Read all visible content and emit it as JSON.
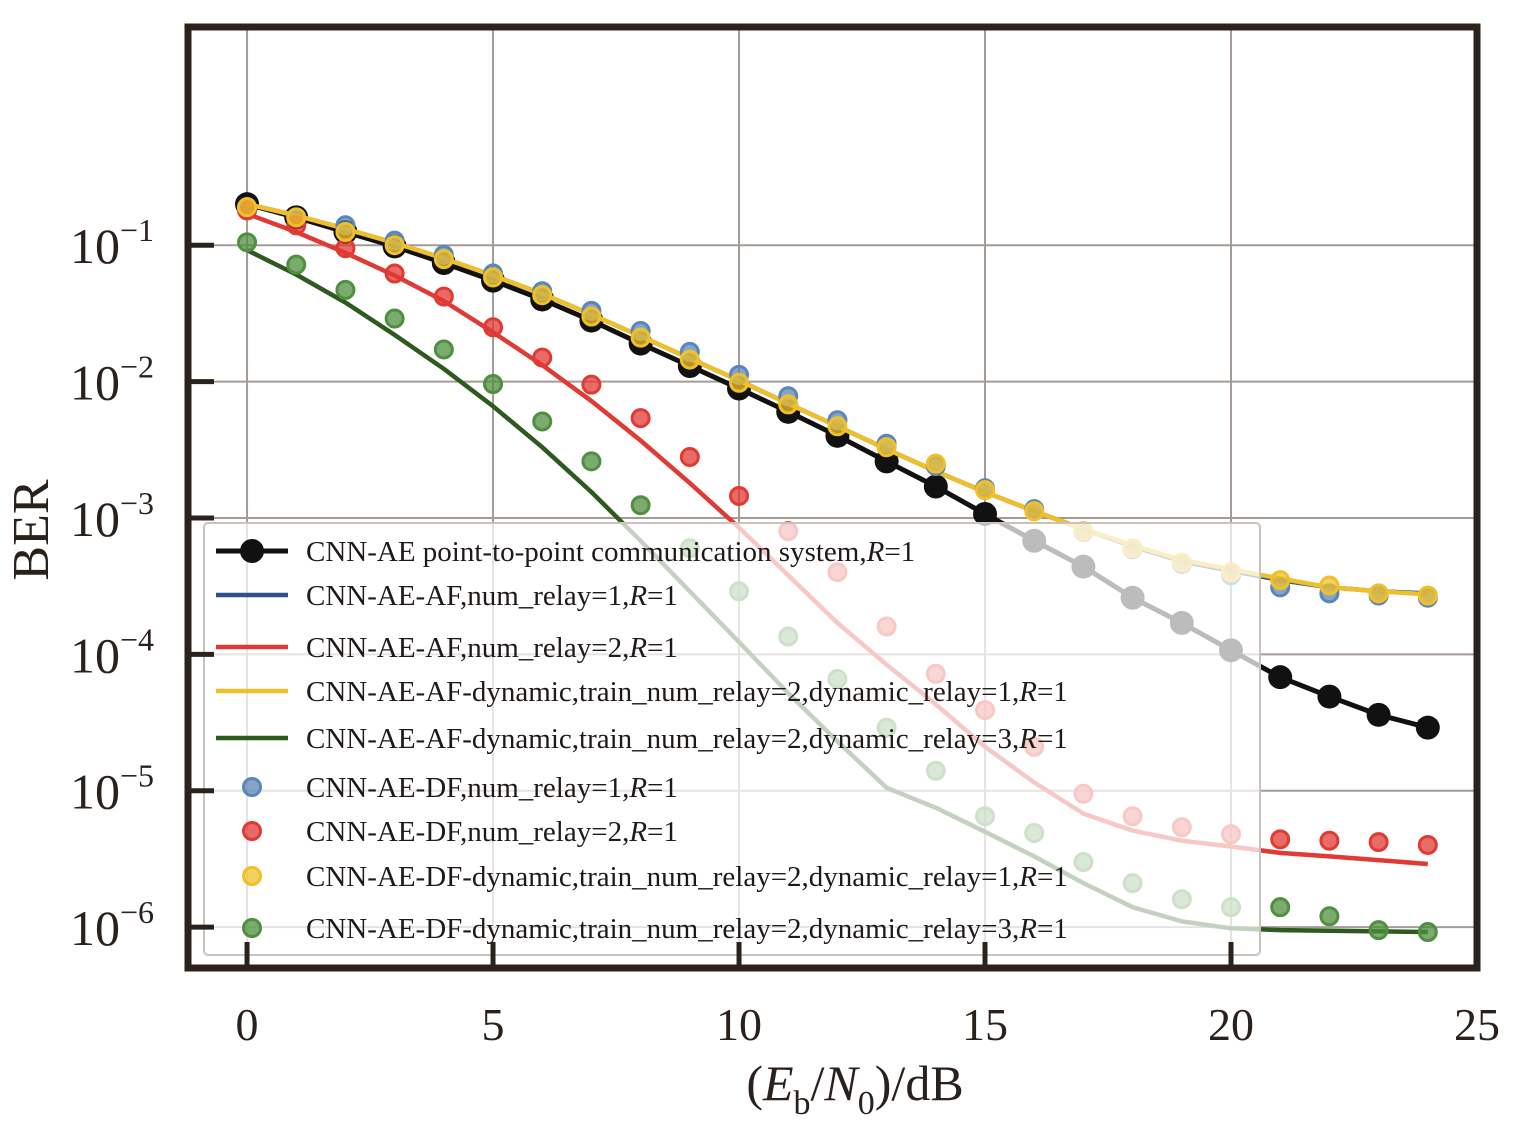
{
  "chart_data": {
    "type": "line",
    "xlabel": {
      "pre": "(",
      "e": "E",
      "b": "b",
      "slash": "/",
      "n": "N",
      "zero": "0",
      "post": ")/dB"
    },
    "ylabel": "BER",
    "xlim": [
      -1.2,
      25
    ],
    "ylim_log10": [
      -6.3,
      0.6
    ],
    "y_scale": "log",
    "grid": true,
    "legend_position": "lower-left",
    "x_ticks": [
      0,
      5,
      10,
      15,
      20,
      25
    ],
    "x_tick_labels": [
      "0",
      "5",
      "10",
      "15",
      "20",
      "25"
    ],
    "y_ticks": [
      {
        "base": "10",
        "exp": "−1",
        "value": 0.1
      },
      {
        "base": "10",
        "exp": "−2",
        "value": 0.01
      },
      {
        "base": "10",
        "exp": "−3",
        "value": 0.001
      },
      {
        "base": "10",
        "exp": "−4",
        "value": 0.0001
      },
      {
        "base": "10",
        "exp": "−5",
        "value": 1e-05
      },
      {
        "base": "10",
        "exp": "−6",
        "value": 1e-06
      }
    ],
    "series": [
      {
        "name": "CNN-AE point-to-point communication system,",
        "suffix": "R",
        "suffix_rest": "=1",
        "kind": "line-marker",
        "color": "#111111",
        "x": [
          0,
          1,
          2,
          3,
          4,
          5,
          6,
          7,
          8,
          9,
          10,
          11,
          12,
          13,
          14,
          15,
          16,
          17,
          18,
          19,
          20,
          21,
          22,
          23,
          24
        ],
        "y": [
          0.2,
          0.16,
          0.125,
          0.098,
          0.074,
          0.055,
          0.04,
          0.028,
          0.019,
          0.013,
          0.0089,
          0.006,
          0.004,
          0.0026,
          0.0017,
          0.00107,
          0.00068,
          0.00044,
          0.00026,
          0.00017,
          0.000107,
          6.8e-05,
          4.9e-05,
          3.6e-05,
          2.9e-05
        ]
      },
      {
        "name": "CNN-AE-AF,num_relay=1,",
        "suffix": "R",
        "suffix_rest": "=1",
        "kind": "line",
        "color": "#2f4f8f",
        "x": [
          0,
          1,
          2,
          3,
          4,
          5,
          6,
          7,
          8,
          9,
          10,
          11,
          12,
          13,
          14,
          15,
          16,
          17,
          18,
          19,
          20,
          21,
          22,
          23,
          24
        ],
        "y": [
          0.2,
          0.165,
          0.132,
          0.104,
          0.08,
          0.06,
          0.044,
          0.031,
          0.0215,
          0.0148,
          0.0102,
          0.0069,
          0.0047,
          0.0032,
          0.0022,
          0.00155,
          0.00112,
          0.00083,
          0.00062,
          0.00048,
          0.00041,
          0.00035,
          0.00031,
          0.00029,
          0.00028
        ]
      },
      {
        "name": "CNN-AE-AF,num_relay=2,",
        "suffix": "R",
        "suffix_rest": "=1",
        "kind": "line",
        "color": "#e03a34",
        "x": [
          0,
          1,
          2,
          3,
          4,
          5,
          6,
          7,
          8,
          9,
          10,
          11,
          12,
          13,
          14,
          15,
          16,
          17,
          18,
          19,
          20,
          21,
          22,
          23,
          24
        ],
        "y": [
          0.17,
          0.125,
          0.088,
          0.06,
          0.039,
          0.023,
          0.0132,
          0.0072,
          0.0037,
          0.0018,
          0.00085,
          0.00038,
          0.00017,
          8.4e-05,
          4.3e-05,
          2.1e-05,
          1.15e-05,
          6.8e-06,
          5.1e-06,
          4.3e-06,
          3.9e-06,
          3.5e-06,
          3.3e-06,
          3.1e-06,
          2.9e-06
        ]
      },
      {
        "name": "CNN-AE-AF-dynamic,train_num_relay=2,dynamic_relay=1,",
        "suffix": "R",
        "suffix_rest": "=1",
        "kind": "line",
        "color": "#f0c02a",
        "x": [
          0,
          1,
          2,
          3,
          4,
          5,
          6,
          7,
          8,
          9,
          10,
          11,
          12,
          13,
          14,
          15,
          16,
          17,
          18,
          19,
          20,
          21,
          22,
          23,
          24
        ],
        "y": [
          0.2,
          0.165,
          0.132,
          0.104,
          0.08,
          0.06,
          0.044,
          0.031,
          0.0215,
          0.0148,
          0.0102,
          0.0069,
          0.0047,
          0.0032,
          0.0022,
          0.00155,
          0.00112,
          0.00083,
          0.00063,
          0.00049,
          0.00042,
          0.00036,
          0.00031,
          0.00029,
          0.000275
        ]
      },
      {
        "name": "CNN-AE-AF-dynamic,train_num_relay=2,dynamic_relay=3,",
        "suffix": "R",
        "suffix_rest": "=1",
        "kind": "line",
        "color": "#2d5a1e",
        "x": [
          0,
          1,
          2,
          3,
          4,
          5,
          6,
          7,
          8,
          9,
          10,
          11,
          12,
          13,
          14,
          15,
          16,
          17,
          18,
          19,
          20,
          21,
          22,
          23,
          24
        ],
        "y": [
          0.092,
          0.061,
          0.038,
          0.022,
          0.0124,
          0.0066,
          0.0033,
          0.00155,
          0.00068,
          0.00029,
          0.000123,
          5.2e-05,
          2.3e-05,
          1.05e-05,
          7.5e-06,
          5e-06,
          3.3e-06,
          2.1e-06,
          1.4e-06,
          1.1e-06,
          9.8e-07,
          9.5e-07,
          9.4e-07,
          9.3e-07,
          9.2e-07
        ]
      },
      {
        "name": "CNN-AE-DF,num_relay=1,",
        "suffix": "R",
        "suffix_rest": "=1",
        "kind": "marker",
        "color": "#5b86b8",
        "x": [
          0,
          1,
          2,
          3,
          4,
          5,
          6,
          7,
          8,
          9,
          10,
          11,
          12,
          13,
          14,
          15,
          16,
          17,
          18,
          19,
          20,
          21,
          22,
          23,
          24
        ],
        "y": [
          0.19,
          0.16,
          0.14,
          0.108,
          0.085,
          0.062,
          0.046,
          0.033,
          0.0235,
          0.0165,
          0.0112,
          0.0078,
          0.0052,
          0.0035,
          0.0024,
          0.00165,
          0.00116,
          0.00079,
          0.00059,
          0.00046,
          0.00038,
          0.00031,
          0.00028,
          0.00027,
          0.00026
        ]
      },
      {
        "name": "CNN-AE-DF,num_relay=2,",
        "suffix": "R",
        "suffix_rest": "=1",
        "kind": "marker",
        "color": "#e03a34",
        "x": [
          0,
          1,
          2,
          3,
          4,
          5,
          6,
          7,
          8,
          9,
          10,
          11,
          12,
          13,
          14,
          15,
          16,
          17,
          18,
          19,
          20,
          21,
          22,
          23,
          24
        ],
        "y": [
          0.18,
          0.14,
          0.095,
          0.062,
          0.042,
          0.025,
          0.015,
          0.0095,
          0.0054,
          0.0028,
          0.00145,
          0.0008,
          0.0004,
          0.00016,
          7.2e-05,
          3.9e-05,
          2.1e-05,
          9.5e-06,
          6.5e-06,
          5.4e-06,
          4.8e-06,
          4.4e-06,
          4.3e-06,
          4.2e-06,
          4e-06
        ]
      },
      {
        "name": "CNN-AE-DF-dynamic,train_num_relay=2,dynamic_relay=1,",
        "suffix": "R",
        "suffix_rest": "=1",
        "kind": "marker",
        "color": "#f0c02a",
        "x": [
          0,
          1,
          2,
          3,
          4,
          5,
          6,
          7,
          8,
          9,
          10,
          11,
          12,
          13,
          14,
          15,
          16,
          17,
          18,
          19,
          20,
          21,
          22,
          23,
          24
        ],
        "y": [
          0.19,
          0.16,
          0.125,
          0.1,
          0.079,
          0.058,
          0.043,
          0.03,
          0.021,
          0.0145,
          0.0098,
          0.0068,
          0.0047,
          0.0033,
          0.0025,
          0.0016,
          0.00112,
          0.0008,
          0.0006,
          0.00047,
          0.0004,
          0.00035,
          0.00032,
          0.00028,
          0.00027
        ]
      },
      {
        "name": "CNN-AE-DF-dynamic,train_num_relay=2,dynamic_relay=3,",
        "suffix": "R",
        "suffix_rest": "=1",
        "kind": "marker",
        "color": "#4f8f3f",
        "x": [
          0,
          1,
          2,
          3,
          4,
          5,
          6,
          7,
          8,
          9,
          10,
          11,
          12,
          13,
          14,
          15,
          16,
          17,
          18,
          19,
          20,
          21,
          22,
          23,
          24
        ],
        "y": [
          0.105,
          0.072,
          0.047,
          0.029,
          0.0172,
          0.0096,
          0.0051,
          0.0026,
          0.00124,
          0.0006,
          0.00029,
          0.000135,
          6.6e-05,
          2.9e-05,
          1.4e-05,
          6.5e-06,
          4.9e-06,
          3e-06,
          2.1e-06,
          1.6e-06,
          1.4e-06,
          1.4e-06,
          1.2e-06,
          9.5e-07,
          9.2e-07
        ]
      }
    ]
  }
}
